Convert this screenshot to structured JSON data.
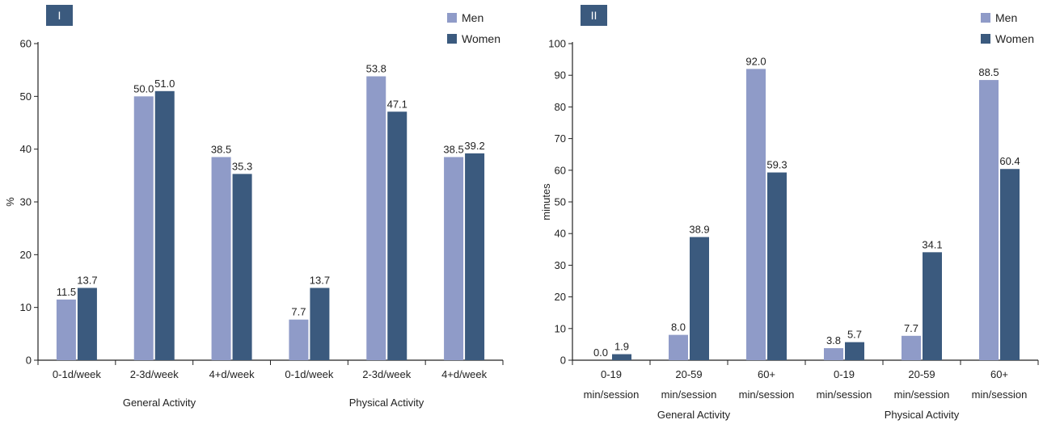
{
  "colors": {
    "men": "#8f9bc8",
    "women": "#3b5a7e",
    "badge": "#3b5a7e",
    "axis": "#222222"
  },
  "chart_data": [
    {
      "type": "bar",
      "panel_label": "I",
      "title": "",
      "xlabel": "",
      "ylabel": "%",
      "ylim": [
        0,
        60
      ],
      "yticks": [
        0,
        10,
        20,
        30,
        40,
        50,
        60
      ],
      "legend": {
        "position": "top-right",
        "entries": [
          "Men",
          "Women"
        ]
      },
      "categories": [
        "0-1d/week",
        "2-3d/week",
        "4+d/week",
        "0-1d/week",
        "2-3d/week",
        "4+d/week"
      ],
      "groups": [
        "General Activity",
        "Physical Activity"
      ],
      "series": [
        {
          "name": "Men",
          "values": [
            11.5,
            50.0,
            38.5,
            7.7,
            53.8,
            38.5
          ],
          "labels": [
            "11.5",
            "50.0",
            "38.5",
            "7.7",
            "53.8",
            "38.5"
          ]
        },
        {
          "name": "Women",
          "values": [
            13.7,
            51.0,
            35.3,
            13.7,
            47.1,
            39.2
          ],
          "labels": [
            "13.7",
            "51.0",
            "35.3",
            "13.7",
            "47.1",
            "39.2"
          ]
        }
      ]
    },
    {
      "type": "bar",
      "panel_label": "II",
      "title": "",
      "xlabel": "",
      "ylabel": "minutes",
      "ylim": [
        0,
        100
      ],
      "yticks": [
        0,
        10,
        20,
        30,
        40,
        50,
        60,
        70,
        80,
        90,
        100
      ],
      "legend": {
        "position": "top-right",
        "entries": [
          "Men",
          "Women"
        ]
      },
      "categories": [
        [
          "0-19",
          "min/session"
        ],
        [
          "20-59",
          "min/session"
        ],
        [
          "60+",
          "min/session"
        ],
        [
          "0-19",
          "min/session"
        ],
        [
          "20-59",
          "min/session"
        ],
        [
          "60+",
          "min/session"
        ]
      ],
      "groups": [
        "General Activity",
        "Physical Activity"
      ],
      "series": [
        {
          "name": "Men",
          "values": [
            0.0,
            8.0,
            92.0,
            3.8,
            7.7,
            88.5
          ],
          "labels": [
            "0.0",
            "8.0",
            "92.0",
            "3.8",
            "7.7",
            "88.5"
          ]
        },
        {
          "name": "Women",
          "values": [
            1.9,
            38.9,
            59.3,
            5.7,
            34.1,
            60.4
          ],
          "labels": [
            "1.9",
            "38.9",
            "59.3",
            "5.7",
            "34.1",
            "60.4"
          ]
        }
      ]
    }
  ]
}
